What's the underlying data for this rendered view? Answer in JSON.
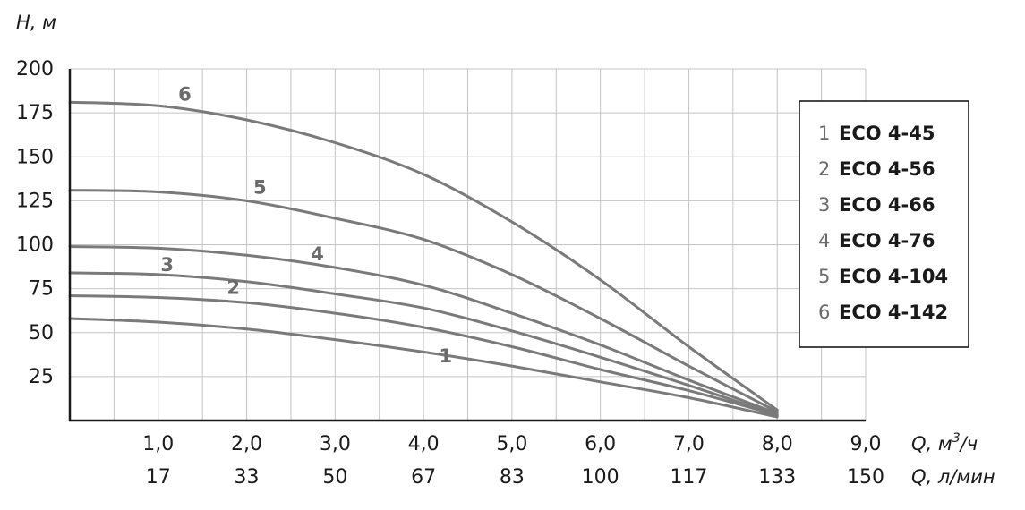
{
  "chart_data": {
    "type": "line",
    "ylabel": "H, м",
    "xlabel": "Q, м³/ч",
    "xlabel_base": "Q, м",
    "xlabel_sup": "3",
    "xlabel_tail": "/ч",
    "x2label": "Q, л/мин",
    "xlim": [
      0,
      9
    ],
    "ylim": [
      0,
      200
    ],
    "grid": true,
    "legend_position": "right",
    "x_ticks": [
      {
        "value": 1,
        "label": "1,0",
        "label2": "17"
      },
      {
        "value": 2,
        "label": "2,0",
        "label2": "33"
      },
      {
        "value": 3,
        "label": "3,0",
        "label2": "50"
      },
      {
        "value": 4,
        "label": "4,0",
        "label2": "67"
      },
      {
        "value": 5,
        "label": "5,0",
        "label2": "83"
      },
      {
        "value": 6,
        "label": "6,0",
        "label2": "100"
      },
      {
        "value": 7,
        "label": "7,0",
        "label2": "117"
      },
      {
        "value": 8,
        "label": "8,0",
        "label2": "133"
      },
      {
        "value": 9,
        "label": "9,0",
        "label2": "150"
      }
    ],
    "y_ticks": [
      {
        "value": 25,
        "label": "25"
      },
      {
        "value": 50,
        "label": "50"
      },
      {
        "value": 75,
        "label": "75"
      },
      {
        "value": 100,
        "label": "100"
      },
      {
        "value": 125,
        "label": "125"
      },
      {
        "value": 150,
        "label": "150"
      },
      {
        "value": 175,
        "label": "175"
      },
      {
        "value": 200,
        "label": "200"
      }
    ],
    "series": [
      {
        "name": "ECO 4-45",
        "number": "1",
        "label_at": [
          4.25,
          33
        ],
        "x": [
          0,
          1,
          2,
          3,
          4,
          5,
          6,
          7,
          8
        ],
        "y": [
          58,
          56,
          52,
          46,
          39,
          31,
          22,
          13,
          2
        ]
      },
      {
        "name": "ECO 4-56",
        "number": "2",
        "label_at": [
          1.85,
          72
        ],
        "x": [
          0,
          1,
          2,
          3,
          4,
          5,
          6,
          7,
          8
        ],
        "y": [
          71,
          70,
          67,
          61,
          53,
          42,
          29,
          17,
          3
        ]
      },
      {
        "name": "ECO 4-66",
        "number": "3",
        "label_at": [
          1.1,
          85
        ],
        "x": [
          0,
          1,
          2,
          3,
          4,
          5,
          6,
          7,
          8
        ],
        "y": [
          84,
          83,
          79,
          72,
          64,
          51,
          36,
          20,
          3
        ]
      },
      {
        "name": "ECO 4-76",
        "number": "4",
        "label_at": [
          2.8,
          91
        ],
        "x": [
          0,
          1,
          2,
          3,
          4,
          5,
          6,
          7,
          8
        ],
        "y": [
          99,
          98,
          94,
          87,
          77,
          61,
          43,
          23,
          4
        ]
      },
      {
        "name": "ECO 4-104",
        "number": "5",
        "label_at": [
          2.15,
          129
        ],
        "x": [
          0,
          1,
          2,
          3,
          4,
          5,
          6,
          7,
          8
        ],
        "y": [
          131,
          130,
          125,
          115,
          103,
          83,
          58,
          31,
          5
        ]
      },
      {
        "name": "ECO 4-142",
        "number": "6",
        "label_at": [
          1.3,
          182
        ],
        "x": [
          0,
          1,
          2,
          3,
          4,
          5,
          6,
          7,
          8
        ],
        "y": [
          181,
          179,
          171,
          158,
          140,
          113,
          80,
          42,
          6
        ]
      }
    ]
  }
}
